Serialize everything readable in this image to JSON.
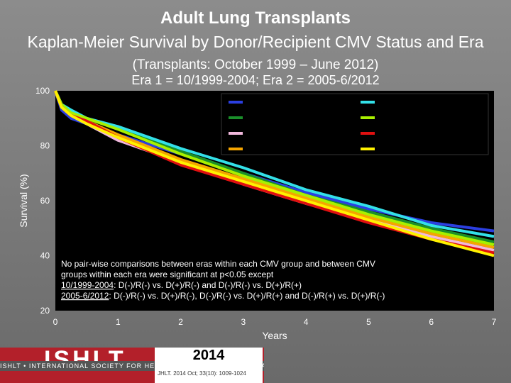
{
  "header": {
    "title": "Adult Lung Transplants",
    "subtitle_main": "Kaplan-Meier Survival by Donor/Recipient CMV Status and Era",
    "subtitle_paren": "(Transplants: October 1999 – June 2012)",
    "era_note": "Era 1 = 10/1999-2004; Era 2 = 2005-6/2012"
  },
  "footer": {
    "logo": "ISHLT",
    "tagline": "ISHLT • INTERNATIONAL SOCIETY FOR HEART AND LUNG TRANSPLANTATION",
    "year": "2014",
    "citation": "JHLT. 2014 Oct; 33(10): 1009-1024"
  },
  "chart_data": {
    "type": "line",
    "xlabel": "Years",
    "ylabel": "Survival (%)",
    "xlim": [
      0,
      7
    ],
    "ylim": [
      20,
      100
    ],
    "x_ticks": [
      0,
      1,
      2,
      3,
      4,
      5,
      6,
      7
    ],
    "y_ticks": [
      20,
      40,
      60,
      80,
      100
    ],
    "grid": false,
    "legend_position": "top-right",
    "annotation": {
      "line1": "No pair-wise comparisons between eras within each CMV group and between CMV",
      "line2": "groups within each era were significant at p<0.05 except",
      "line3_label": "10/1999-2004",
      "line3_text": ": D(-)/R(-) vs. D(+)/R(-) and D(-)/R(-) vs. D(+)/R(+)",
      "line4_label": "2005-6/2012",
      "line4_text": ": D(-)/R(-) vs. D(+)/R(-), D(-)/R(-) vs. D(+)/R(+) and D(-)/R(+) vs. D(+)/R(-)"
    },
    "series": [
      {
        "color": "#2b3fe0",
        "x": [
          0,
          0.1,
          0.25,
          0.5,
          1,
          2,
          3,
          4,
          5,
          6,
          7
        ],
        "y": [
          100,
          93,
          90,
          88,
          84,
          77,
          70,
          63,
          57,
          52,
          49
        ]
      },
      {
        "color": "#1a8f2a",
        "x": [
          0,
          0.1,
          0.25,
          0.5,
          1,
          2,
          3,
          4,
          5,
          6,
          7
        ],
        "y": [
          100,
          95,
          92,
          90,
          86,
          78,
          70,
          62,
          56,
          50,
          45
        ]
      },
      {
        "color": "#f0b8dc",
        "x": [
          0,
          0.1,
          0.25,
          0.5,
          1,
          2,
          3,
          4,
          5,
          6,
          7
        ],
        "y": [
          100,
          94,
          91,
          88,
          82,
          74,
          66,
          59,
          53,
          47,
          42
        ]
      },
      {
        "color": "#f5a500",
        "x": [
          0,
          0.1,
          0.25,
          0.5,
          1,
          2,
          3,
          4,
          5,
          6,
          7
        ],
        "y": [
          100,
          94,
          92,
          89,
          84,
          75,
          68,
          61,
          54,
          48,
          43
        ]
      },
      {
        "color": "#33e0e8",
        "x": [
          0,
          0.1,
          0.25,
          0.5,
          1,
          2,
          3,
          4,
          5,
          6,
          7
        ],
        "y": [
          100,
          95,
          93,
          90,
          87,
          79,
          72,
          64,
          58,
          51,
          47
        ]
      },
      {
        "color": "#a8f000",
        "x": [
          0,
          0.1,
          0.25,
          0.5,
          1,
          2,
          3,
          4,
          5,
          6,
          7
        ],
        "y": [
          100,
          95,
          92,
          90,
          86,
          77,
          69,
          62,
          55,
          49,
          44
        ]
      },
      {
        "color": "#e01010",
        "x": [
          0,
          0.1,
          0.25,
          0.5,
          1,
          2,
          3,
          4,
          5,
          6,
          7
        ],
        "y": [
          100,
          94,
          91,
          89,
          83,
          73,
          66,
          59,
          52,
          46,
          41
        ]
      },
      {
        "color": "#fff200",
        "x": [
          0,
          0.1,
          0.25,
          0.5,
          1,
          2,
          3,
          4,
          5,
          6,
          7
        ],
        "y": [
          100,
          94,
          91,
          88,
          83,
          74,
          67,
          60,
          53,
          46,
          40
        ]
      }
    ]
  }
}
